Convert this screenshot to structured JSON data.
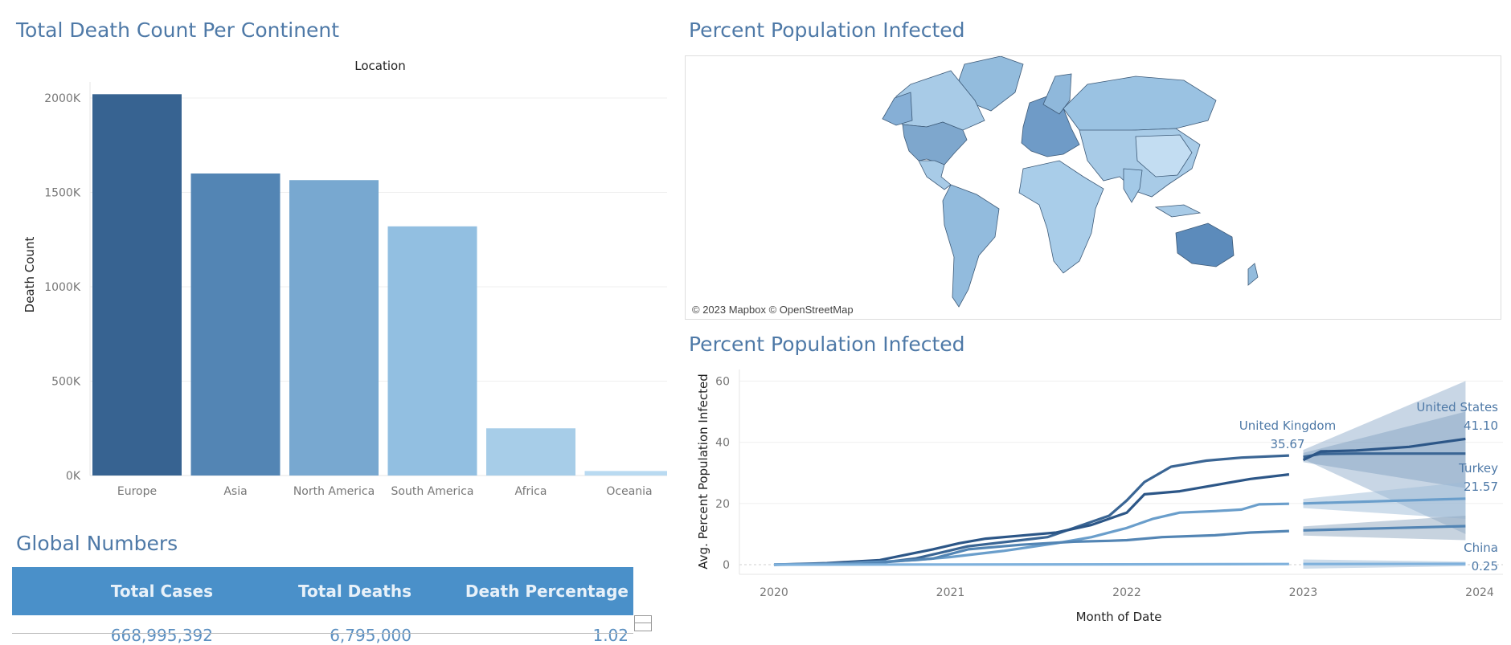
{
  "titles": {
    "deaths": "Total Death Count Per Continent",
    "map": "Percent Population Infected",
    "line": "Percent Population Infected",
    "global": "Global Numbers"
  },
  "map": {
    "credit": "© 2023 Mapbox © OpenStreetMap"
  },
  "global_table": {
    "headers": [
      "Total Cases",
      "Total Deaths",
      "Death Percentage"
    ],
    "values": [
      "668,995,392",
      "6,795,000",
      "1.02"
    ]
  },
  "chart_data": [
    {
      "type": "bar",
      "title": "Total Death Count Per Continent",
      "column_header": "Location",
      "ylabel": "Death Count",
      "categories": [
        "Europe",
        "Asia",
        "North America",
        "South America",
        "Africa",
        "Oceania"
      ],
      "values": [
        2020000,
        1600000,
        1565000,
        1320000,
        250000,
        24000
      ],
      "ylim": [
        0,
        2000000
      ],
      "yticks": [
        0,
        500000,
        1000000,
        1500000,
        2000000
      ],
      "ytick_labels": [
        "0K",
        "500K",
        "1000K",
        "1500K",
        "2000K"
      ],
      "colors": [
        "#376391",
        "#5385b4",
        "#78a8d0",
        "#92bfe1",
        "#a7cde8",
        "#b9daf1"
      ],
      "grid": true
    },
    {
      "type": "line",
      "title": "Percent Population Infected",
      "xlabel": "Month of Date",
      "ylabel": "Avg. Percent Population Infected",
      "xlim": [
        2020,
        2024
      ],
      "ylim": [
        0,
        60
      ],
      "xticks": [
        2020,
        2021,
        2022,
        2023,
        2024
      ],
      "yticks": [
        0,
        20,
        40,
        60
      ],
      "series": [
        {
          "name": "United Kingdom",
          "label_value": "35.67",
          "color": "#3a6594",
          "x": [
            2020.0,
            2020.3,
            2020.6,
            2020.8,
            2020.95,
            2021.1,
            2021.25,
            2021.4,
            2021.55,
            2021.7,
            2021.9,
            2022.0,
            2022.1,
            2022.25,
            2022.45,
            2022.65,
            2022.92
          ],
          "y": [
            0,
            0.1,
            0.6,
            2,
            4,
            6,
            7,
            8,
            9,
            12,
            16,
            21,
            27,
            32,
            34,
            35,
            35.67
          ],
          "forecast": {
            "x": [
              2023.0,
              2023.1,
              2023.3,
              2023.6,
              2023.92
            ],
            "y": [
              35.2,
              36.2,
              36.3,
              36.3,
              36.3
            ]
          }
        },
        {
          "name": "United States",
          "label_value": "41.10",
          "color": "#2c5687",
          "x": [
            2020.0,
            2020.3,
            2020.6,
            2020.9,
            2021.05,
            2021.2,
            2021.4,
            2021.6,
            2021.8,
            2022.0,
            2022.1,
            2022.3,
            2022.5,
            2022.7,
            2022.92
          ],
          "y": [
            0,
            0.5,
            1.5,
            5,
            7,
            8.5,
            9.5,
            10.5,
            13,
            17,
            23,
            24,
            26,
            28,
            29.5
          ],
          "forecast": {
            "x": [
              2023.0,
              2023.1,
              2023.3,
              2023.6,
              2023.92
            ],
            "y": [
              34.2,
              37,
              37.3,
              38.5,
              41.1
            ]
          }
        },
        {
          "name": "Turkey",
          "label_value": "21.57",
          "color": "#6a9ecb",
          "x": [
            2020.0,
            2020.4,
            2020.8,
            2021.0,
            2021.3,
            2021.6,
            2021.8,
            2022.0,
            2022.15,
            2022.3,
            2022.5,
            2022.65,
            2022.75,
            2022.92
          ],
          "y": [
            0,
            0.4,
            1.5,
            2.5,
            4.5,
            7,
            9,
            12,
            15,
            17,
            17.5,
            18,
            19.7,
            19.9
          ],
          "forecast": {
            "x": [
              2023.0,
              2023.92
            ],
            "y": [
              20.0,
              21.57
            ]
          }
        },
        {
          "name": "",
          "color": "#5385b4",
          "x": [
            2020.0,
            2020.5,
            2020.9,
            2021.1,
            2021.4,
            2021.7,
            2021.9,
            2022.0,
            2022.2,
            2022.5,
            2022.7,
            2022.92
          ],
          "y": [
            0,
            0.3,
            2,
            5,
            6.5,
            7.5,
            7.8,
            8,
            9,
            9.6,
            10.5,
            11
          ],
          "forecast": {
            "x": [
              2023.0,
              2023.92
            ],
            "y": [
              11.2,
              12.6
            ]
          }
        },
        {
          "name": "China",
          "label_value": "0.25",
          "color": "#7fb1dc",
          "x": [
            2020.0,
            2021.0,
            2022.0,
            2022.92
          ],
          "y": [
            0,
            0.05,
            0.1,
            0.2
          ],
          "forecast": {
            "x": [
              2023.0,
              2023.92
            ],
            "y": [
              0.2,
              0.25
            ]
          }
        }
      ],
      "grid": true
    }
  ]
}
